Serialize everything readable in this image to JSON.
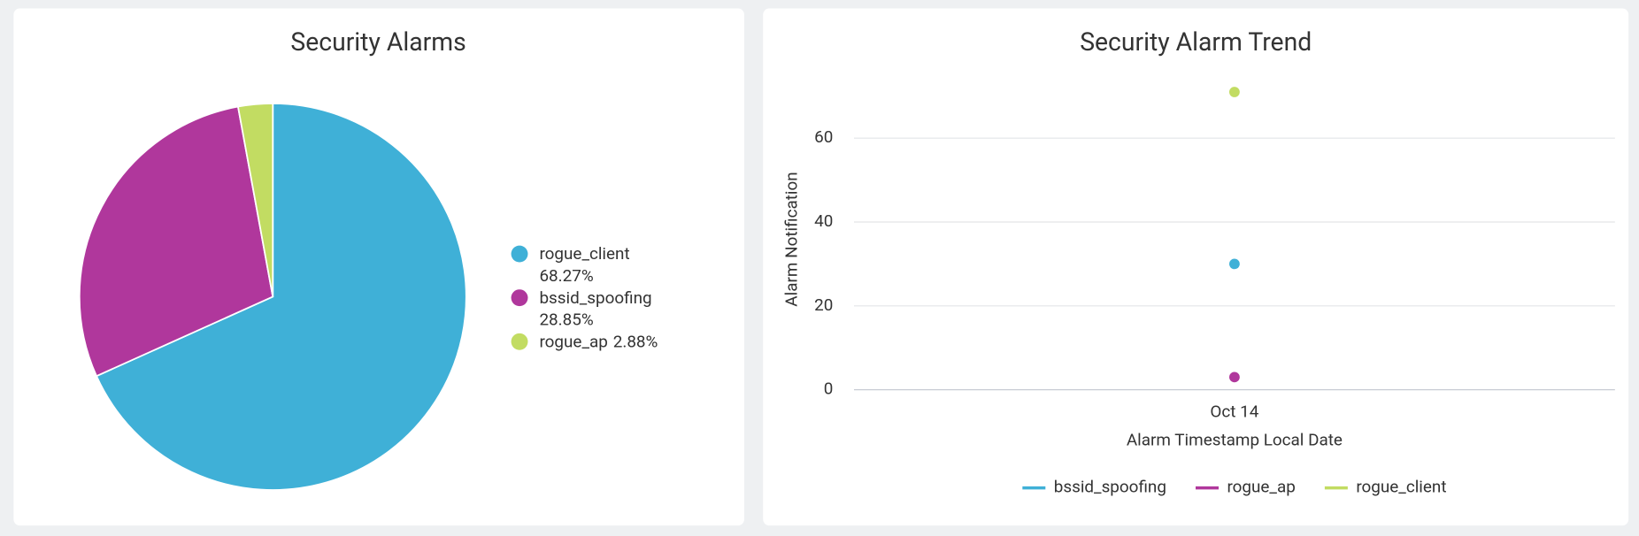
{
  "chart_data": [
    {
      "type": "pie",
      "title": "Security Alarms",
      "categories": [
        "rogue_client",
        "bssid_spoofing",
        "rogue_ap"
      ],
      "values": [
        68.27,
        28.85,
        2.88
      ],
      "value_labels": [
        "68.27%",
        "28.85%",
        "2.88%"
      ],
      "colors": [
        "#3fb0d7",
        "#b0379c",
        "#c2dc62"
      ]
    },
    {
      "type": "line",
      "title": "Security Alarm Trend",
      "x_label": "Alarm Timestamp Local Date",
      "y_label": "Alarm Notification",
      "categories": [
        "Oct 14"
      ],
      "series": [
        {
          "name": "bssid_spoofing",
          "color": "#3fb0d7",
          "values": [
            30
          ]
        },
        {
          "name": "rogue_ap",
          "color": "#b0379c",
          "values": [
            3
          ]
        },
        {
          "name": "rogue_client",
          "color": "#c2dc62",
          "values": [
            71
          ]
        }
      ],
      "ylim": [
        0,
        74
      ],
      "yticks": [
        0,
        20,
        40,
        60
      ],
      "grid": true
    }
  ]
}
